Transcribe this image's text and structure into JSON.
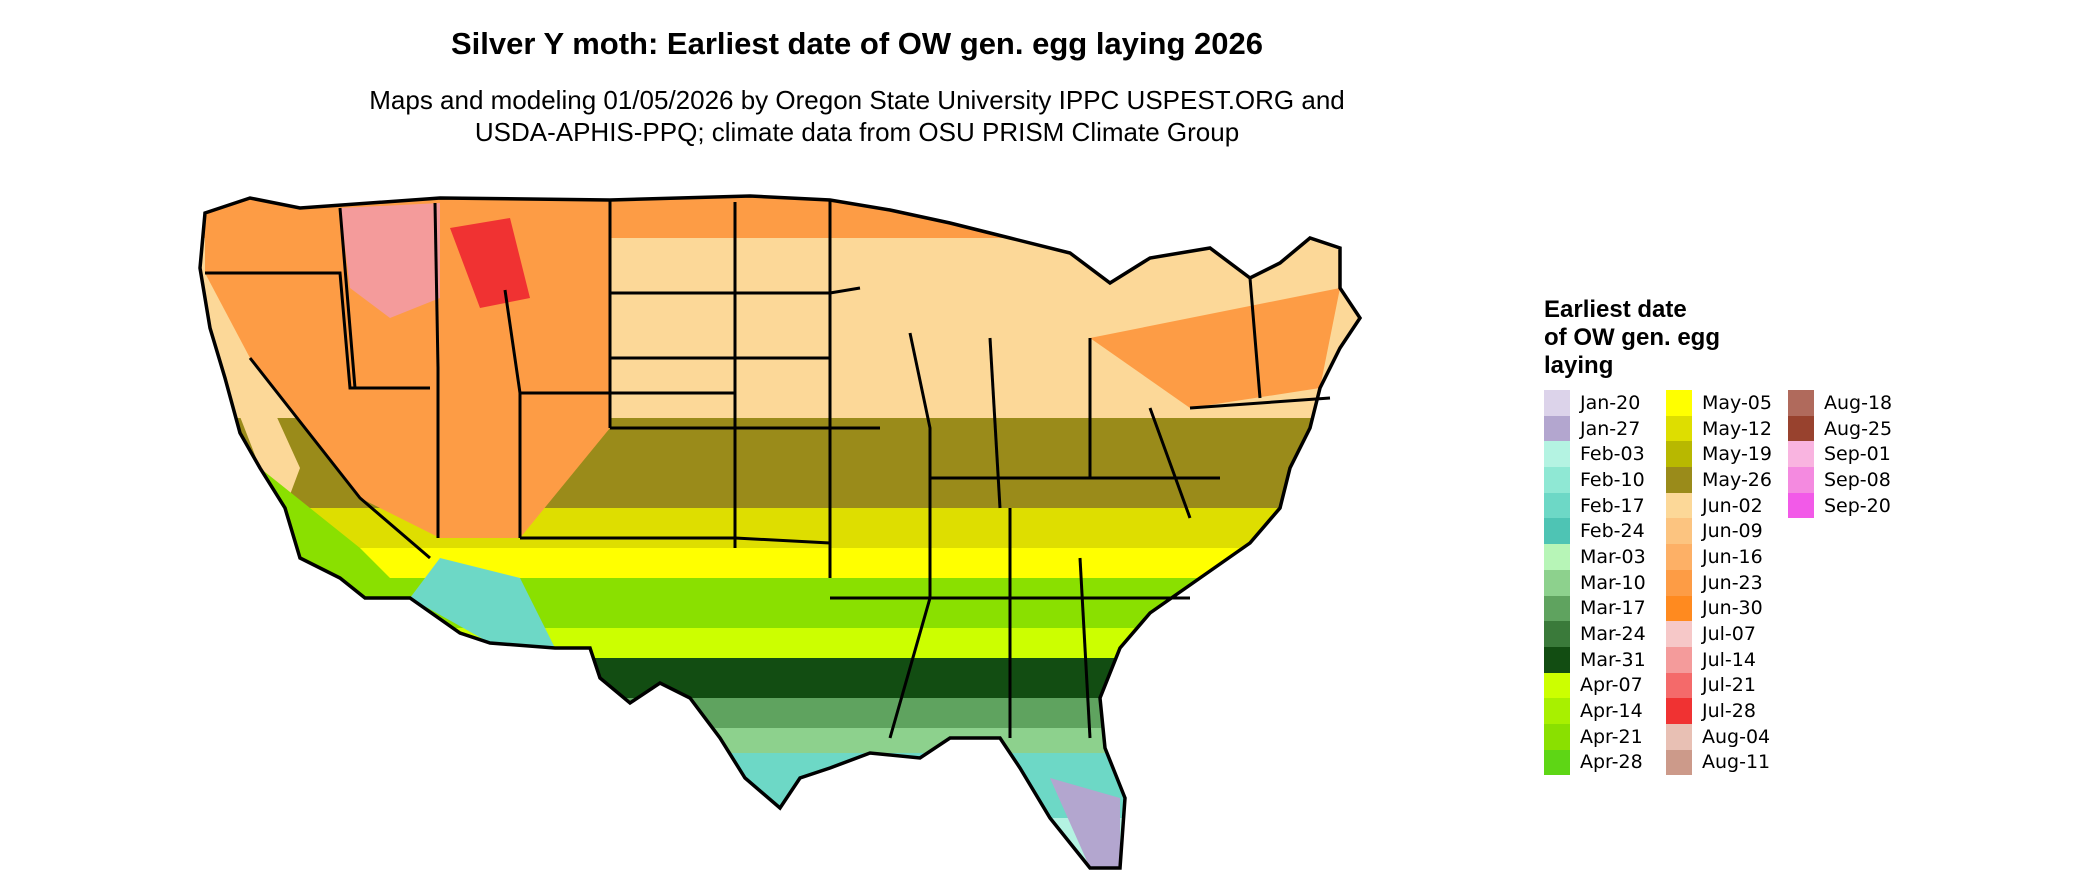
{
  "title": "Silver Y moth: Earliest date of OW gen. egg laying 2026",
  "subtitle": {
    "line1": "Maps and modeling 01/05/2026 by Oregon State University IPPC USPEST.ORG and",
    "line2": "USDA-APHIS-PPQ; climate data from OSU PRISM Climate Group"
  },
  "legend": {
    "title_line1": "Earliest date",
    "title_line2": "of OW gen. egg",
    "title_line3": "laying",
    "columns": [
      [
        {
          "label": "Jan-20",
          "color": "#dcd3ea"
        },
        {
          "label": "Jan-27",
          "color": "#b3a6cf"
        },
        {
          "label": "Feb-03",
          "color": "#b4f3e2"
        },
        {
          "label": "Feb-10",
          "color": "#8fe8d4"
        },
        {
          "label": "Feb-17",
          "color": "#6dd8c6"
        },
        {
          "label": "Feb-24",
          "color": "#4ec4b4"
        },
        {
          "label": "Mar-03",
          "color": "#b7f5b7"
        },
        {
          "label": "Mar-10",
          "color": "#8dd18d"
        },
        {
          "label": "Mar-17",
          "color": "#5fa35f"
        },
        {
          "label": "Mar-24",
          "color": "#3a7a3a"
        },
        {
          "label": "Mar-31",
          "color": "#124d12"
        },
        {
          "label": "Apr-07",
          "color": "#ccff00"
        },
        {
          "label": "Apr-14",
          "color": "#a8f000"
        },
        {
          "label": "Apr-21",
          "color": "#8ae000"
        },
        {
          "label": "Apr-28",
          "color": "#5ed615"
        }
      ],
      [
        {
          "label": "May-05",
          "color": "#ffff00"
        },
        {
          "label": "May-12",
          "color": "#dede00"
        },
        {
          "label": "May-19",
          "color": "#b8b800"
        },
        {
          "label": "May-26",
          "color": "#9a8b1a"
        },
        {
          "label": "Jun-02",
          "color": "#fcd898"
        },
        {
          "label": "Jun-09",
          "color": "#fcc480"
        },
        {
          "label": "Jun-16",
          "color": "#fdb066"
        },
        {
          "label": "Jun-23",
          "color": "#fd9c45"
        },
        {
          "label": "Jun-30",
          "color": "#ff8a1f"
        },
        {
          "label": "Jul-07",
          "color": "#f6c8c8"
        },
        {
          "label": "Jul-14",
          "color": "#f49b9b"
        },
        {
          "label": "Jul-21",
          "color": "#f46a6a"
        },
        {
          "label": "Jul-28",
          "color": "#f03232"
        },
        {
          "label": "Aug-04",
          "color": "#e8c0b4"
        },
        {
          "label": "Aug-11",
          "color": "#cc9a8a"
        }
      ],
      [
        {
          "label": "Aug-18",
          "color": "#b06a5c"
        },
        {
          "label": "Aug-25",
          "color": "#98422e"
        },
        {
          "label": "Sep-01",
          "color": "#f9b4e0"
        },
        {
          "label": "Sep-08",
          "color": "#f48ae0"
        },
        {
          "label": "Sep-20",
          "color": "#f25ae8"
        }
      ]
    ]
  },
  "map": {
    "region": "Contiguous United States",
    "outline_color": "#000000",
    "bands": [
      {
        "label": "Jun-02",
        "color": "#fcd898"
      },
      {
        "label": "Jun-16",
        "color": "#fdb066"
      },
      {
        "label": "Jun-23",
        "color": "#fd9c45"
      },
      {
        "label": "May-26",
        "color": "#9a8b1a"
      },
      {
        "label": "May-12",
        "color": "#dede00"
      },
      {
        "label": "May-05",
        "color": "#ffff00"
      },
      {
        "label": "Apr-21",
        "color": "#8ae000"
      },
      {
        "label": "Apr-07",
        "color": "#ccff00"
      },
      {
        "label": "Mar-31",
        "color": "#124d12"
      },
      {
        "label": "Mar-17",
        "color": "#5fa35f"
      },
      {
        "label": "Mar-10",
        "color": "#8dd18d"
      },
      {
        "label": "Feb-17",
        "color": "#6dd8c6"
      },
      {
        "label": "Feb-03",
        "color": "#b4f3e2"
      },
      {
        "label": "Jan-27",
        "color": "#b3a6cf"
      },
      {
        "label": "Jul-14",
        "color": "#f49b9b"
      },
      {
        "label": "Jul-28",
        "color": "#f03232"
      }
    ]
  }
}
